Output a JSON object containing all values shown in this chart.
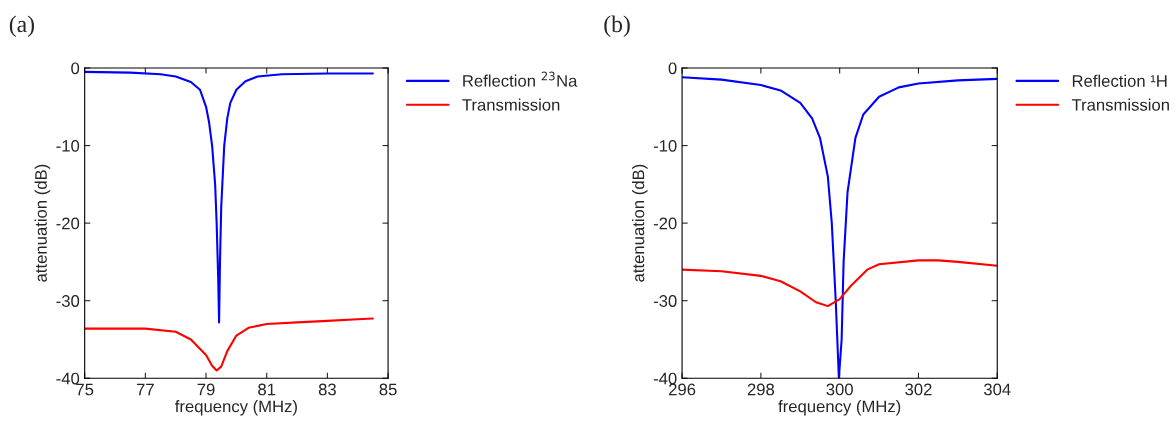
{
  "chart_data": [
    {
      "type": "line",
      "title": "(a)",
      "xlabel": "frequency (MHz)",
      "ylabel": "attenuation (dB)",
      "xlim": [
        75,
        85
      ],
      "xticks": [
        75,
        77,
        79,
        81,
        83,
        85
      ],
      "ylim": [
        -40,
        0
      ],
      "yticks": [
        -40,
        -30,
        -20,
        -10,
        0
      ],
      "legend": "top right",
      "grid": false,
      "series": [
        {
          "name": "Reflection $^{23}$Na",
          "color": "#0000ff",
          "x": [
            75,
            76.5,
            77.5,
            78,
            78.5,
            78.8,
            79.0,
            79.1,
            79.2,
            79.3,
            79.35,
            79.4,
            79.43,
            79.46,
            79.5,
            79.6,
            79.7,
            79.8,
            80,
            80.3,
            80.7,
            81.5,
            83,
            84.5
          ],
          "values": [
            -0.5,
            -0.6,
            -0.8,
            -1.1,
            -1.8,
            -2.8,
            -5,
            -7,
            -10,
            -15,
            -20,
            -27,
            -32.8,
            -25,
            -18,
            -10,
            -6.5,
            -4.5,
            -2.8,
            -1.7,
            -1.1,
            -0.8,
            -0.7,
            -0.7
          ]
        },
        {
          "name": "Transmission",
          "color": "#ff0000",
          "x": [
            75,
            77,
            78,
            78.5,
            79,
            79.2,
            79.35,
            79.5,
            79.7,
            80,
            80.4,
            81,
            82,
            83,
            84,
            84.5
          ],
          "values": [
            -33.6,
            -33.6,
            -34,
            -35,
            -37,
            -38.4,
            -39,
            -38.5,
            -36.5,
            -34.5,
            -33.5,
            -33,
            -32.8,
            -32.6,
            -32.4,
            -32.3
          ]
        }
      ]
    },
    {
      "type": "line",
      "title": "(b)",
      "xlabel": "frequency (MHz)",
      "ylabel": "attenuation (dB)",
      "xlim": [
        296,
        304
      ],
      "xticks": [
        296,
        298,
        300,
        302,
        304
      ],
      "ylim": [
        -40,
        0
      ],
      "yticks": [
        -40,
        -30,
        -20,
        -10,
        0
      ],
      "legend": "top right",
      "grid": false,
      "series": [
        {
          "name": "Reflection ¹H",
          "color": "#0000ff",
          "x": [
            296,
            297,
            298,
            298.5,
            299,
            299.3,
            299.5,
            299.7,
            299.8,
            299.9,
            299.98,
            300.05,
            300.1,
            300.2,
            300.4,
            300.6,
            301,
            301.5,
            302,
            303,
            304
          ],
          "values": [
            -1.2,
            -1.5,
            -2.2,
            -2.9,
            -4.5,
            -6.5,
            -9,
            -14,
            -20,
            -30,
            -40,
            -35,
            -25,
            -16,
            -9,
            -6,
            -3.7,
            -2.5,
            -2,
            -1.6,
            -1.4
          ]
        },
        {
          "name": "Transmission",
          "color": "#ff0000",
          "x": [
            296,
            297,
            298,
            298.5,
            299,
            299.4,
            299.7,
            300,
            300.3,
            300.7,
            301,
            302,
            302.5,
            303,
            304
          ],
          "values": [
            -26,
            -26.2,
            -26.8,
            -27.5,
            -28.8,
            -30.2,
            -30.7,
            -29.8,
            -28,
            -26,
            -25.3,
            -24.8,
            -24.8,
            -25,
            -25.5
          ]
        }
      ]
    }
  ]
}
